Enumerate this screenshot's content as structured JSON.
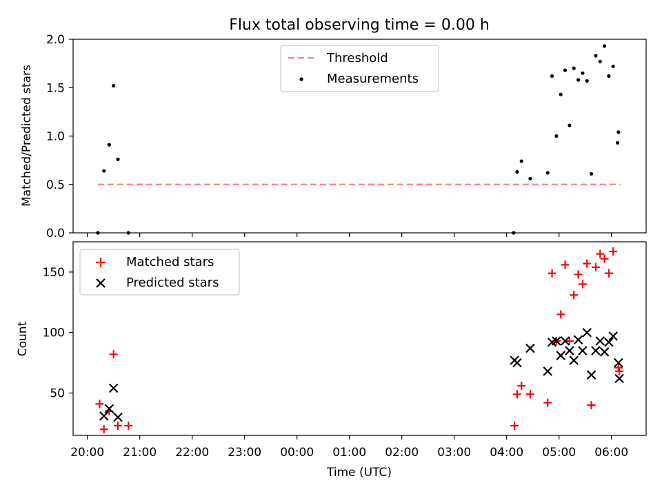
{
  "title": "Flux total observing time = 0.00 h",
  "xlabel": "Time (UTC)",
  "chart_data": [
    {
      "type": "scatter",
      "ylabel": "Matched/Predicted stars",
      "ylim": [
        0,
        2.0
      ],
      "yticks": [
        "0.0",
        "0.5",
        "1.0",
        "1.5",
        "2.0"
      ],
      "ytick_values": [
        0,
        0.5,
        1.0,
        1.5,
        2.0
      ],
      "legend_position": "top-center",
      "series": [
        {
          "name": "Threshold",
          "style": "dashed-line",
          "color": "#ff8080",
          "x": [
            "20:12",
            "06:10"
          ],
          "y": [
            0.5,
            0.5
          ]
        },
        {
          "name": "Measurements",
          "style": "dot",
          "color": "#000000",
          "x": [
            "20:12",
            "20:19",
            "20:25",
            "20:30",
            "20:35",
            "20:47",
            "04:08",
            "04:12",
            "04:17",
            "04:27",
            "04:47",
            "04:52",
            "04:57",
            "05:02",
            "05:07",
            "05:12",
            "05:17",
            "05:22",
            "05:27",
            "05:32",
            "05:37",
            "05:42",
            "05:47",
            "05:52",
            "05:57",
            "06:02",
            "06:07",
            "06:08"
          ],
          "y": [
            0.0,
            0.64,
            0.91,
            1.52,
            0.76,
            0.0,
            0.0,
            0.63,
            0.74,
            0.56,
            0.62,
            1.62,
            1.0,
            1.43,
            1.68,
            1.11,
            1.7,
            1.58,
            1.65,
            1.57,
            0.61,
            1.83,
            1.77,
            1.93,
            1.62,
            1.72,
            0.93,
            1.04
          ]
        }
      ]
    },
    {
      "type": "scatter",
      "ylabel": "Count",
      "ylim": [
        15,
        175
      ],
      "yticks": [
        "50",
        "100",
        "150"
      ],
      "ytick_values": [
        50,
        100,
        150
      ],
      "legend_position": "top-left",
      "series": [
        {
          "name": "Matched stars",
          "marker": "+",
          "color": "#ff0000",
          "x": [
            "20:14",
            "20:19",
            "20:25",
            "20:30",
            "20:35",
            "20:47",
            "04:09",
            "04:12",
            "04:17",
            "04:27",
            "04:47",
            "04:52",
            "04:57",
            "05:02",
            "05:07",
            "05:12",
            "05:17",
            "05:22",
            "05:27",
            "05:32",
            "05:37",
            "05:42",
            "05:47",
            "05:52",
            "05:57",
            "06:02",
            "06:08",
            "06:09"
          ],
          "y": [
            41,
            20,
            35,
            82,
            23,
            23,
            23,
            49,
            56,
            49,
            42,
            149,
            93,
            115,
            156,
            93,
            131,
            148,
            140,
            157,
            40,
            154,
            165,
            161,
            149,
            167,
            71,
            68
          ]
        },
        {
          "name": "Predicted stars",
          "marker": "x",
          "color": "#000000",
          "x": [
            "20:19",
            "20:25",
            "20:30",
            "20:35",
            "04:09",
            "04:12",
            "04:27",
            "04:47",
            "04:52",
            "04:57",
            "05:02",
            "05:07",
            "05:12",
            "05:17",
            "05:22",
            "05:27",
            "05:32",
            "05:37",
            "05:42",
            "05:47",
            "05:52",
            "05:57",
            "06:02",
            "06:08",
            "06:09"
          ],
          "y": [
            31,
            37,
            54,
            30,
            77,
            75,
            87,
            68,
            92,
            93,
            81,
            93,
            85,
            77,
            94,
            85,
            100,
            65,
            85,
            93,
            84,
            92,
            97,
            75,
            62
          ]
        }
      ]
    }
  ],
  "xticks": [
    "20:00",
    "21:00",
    "22:00",
    "23:00",
    "00:00",
    "01:00",
    "02:00",
    "03:00",
    "04:00",
    "05:00",
    "06:00"
  ]
}
